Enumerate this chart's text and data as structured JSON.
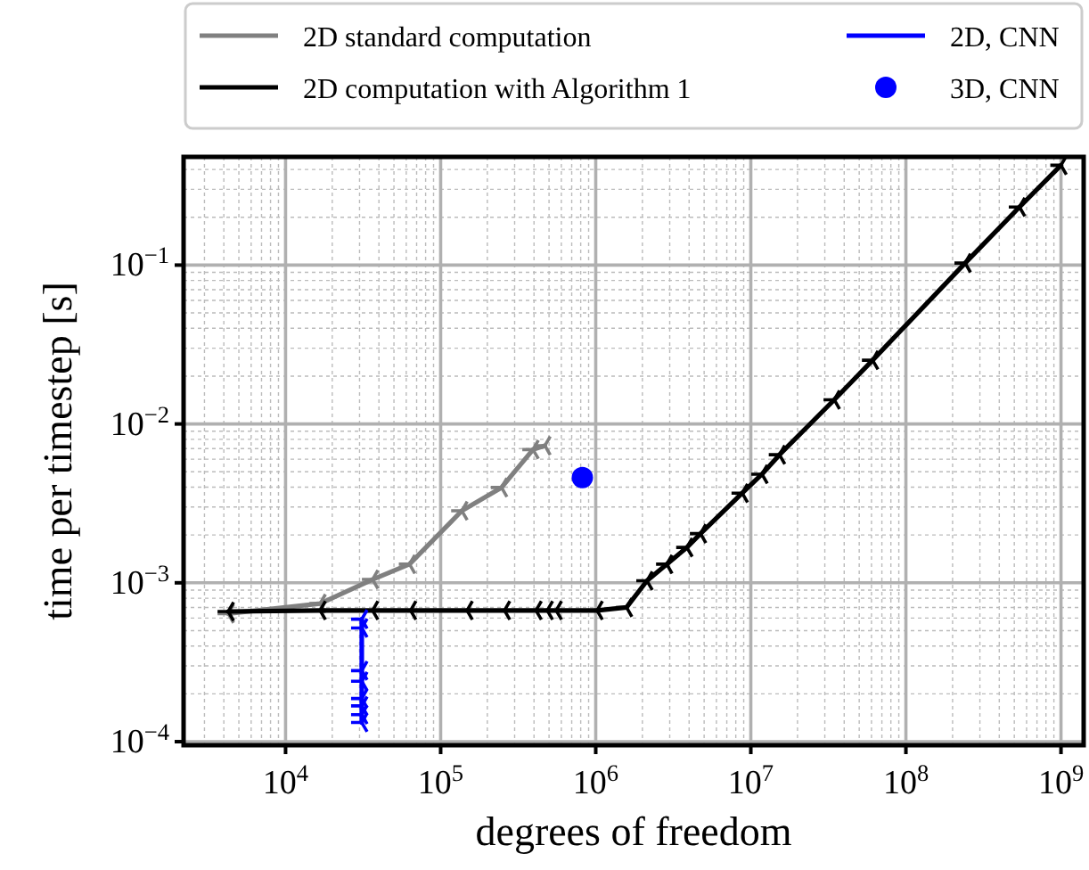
{
  "chart_data": {
    "type": "line",
    "xlabel": "degrees of freedom",
    "ylabel": "time per timestep [s]",
    "log": "xy",
    "grid": true,
    "legend": "top",
    "xlim": [
      2200,
      1400000000
    ],
    "ylim": [
      9.5e-05,
      0.48
    ],
    "xticks": [
      {
        "value": 10000,
        "label": "10$^{4}$"
      },
      {
        "value": 100000,
        "label": "10$^{5}$"
      },
      {
        "value": 1000000,
        "label": "10$^{6}$"
      },
      {
        "value": 10000000,
        "label": "10$^{7}$"
      },
      {
        "value": 100000000,
        "label": "10$^{8}$"
      },
      {
        "value": 1000000000,
        "label": "10$^{9}$"
      }
    ],
    "yticks": [
      {
        "value": 0.0001,
        "label": "10$^{−4}$"
      },
      {
        "value": 0.001,
        "label": "10$^{−3}$"
      },
      {
        "value": 0.01,
        "label": "10$^{−2}$"
      },
      {
        "value": 0.1,
        "label": "10$^{−1}$"
      }
    ],
    "series": [
      {
        "name": "2D standard computation",
        "color": "#808080",
        "marker": "cross",
        "x": [
          4270,
          16700,
          36400,
          63000,
          137000,
          247000,
          394000,
          470000
        ],
        "values": [
          0.00064,
          0.00074,
          0.00105,
          0.00131,
          0.00284,
          0.00398,
          0.0069,
          0.0073
        ]
      },
      {
        "name": "2D computation with Algorithm 1",
        "color": "#000000",
        "marker": "cross",
        "x": [
          4270,
          16700,
          36400,
          64000,
          148000,
          258000,
          412000,
          487000,
          556000,
          1020000,
          1580000,
          2140000,
          2870000,
          3870000,
          4740000,
          8800000,
          11800000,
          15300000,
          34500000,
          61000000,
          241000000,
          540000000,
          1000000000
        ],
        "values": [
          0.00066,
          0.00067,
          0.00067,
          0.00067,
          0.00067,
          0.00067,
          0.00067,
          0.00067,
          0.00067,
          0.00067,
          0.0007,
          0.00103,
          0.00131,
          0.00167,
          0.00204,
          0.00367,
          0.00483,
          0.0064,
          0.0142,
          0.0252,
          0.103,
          0.232,
          0.425
        ]
      },
      {
        "name": "2D, CNN",
        "color": "#0000ff",
        "marker": "cross",
        "x": [
          31000,
          31000,
          31000,
          31000,
          31000,
          31000,
          31000,
          31000
        ],
        "values": [
          0.00059,
          0.00052,
          0.00028,
          0.00024,
          0.000187,
          0.000168,
          0.000148,
          0.000132
        ]
      },
      {
        "name": "3D, CNN",
        "color": "#0000ff",
        "type": "scatter",
        "marker": "circle",
        "x": [
          820000
        ],
        "values": [
          0.0046
        ]
      }
    ]
  }
}
